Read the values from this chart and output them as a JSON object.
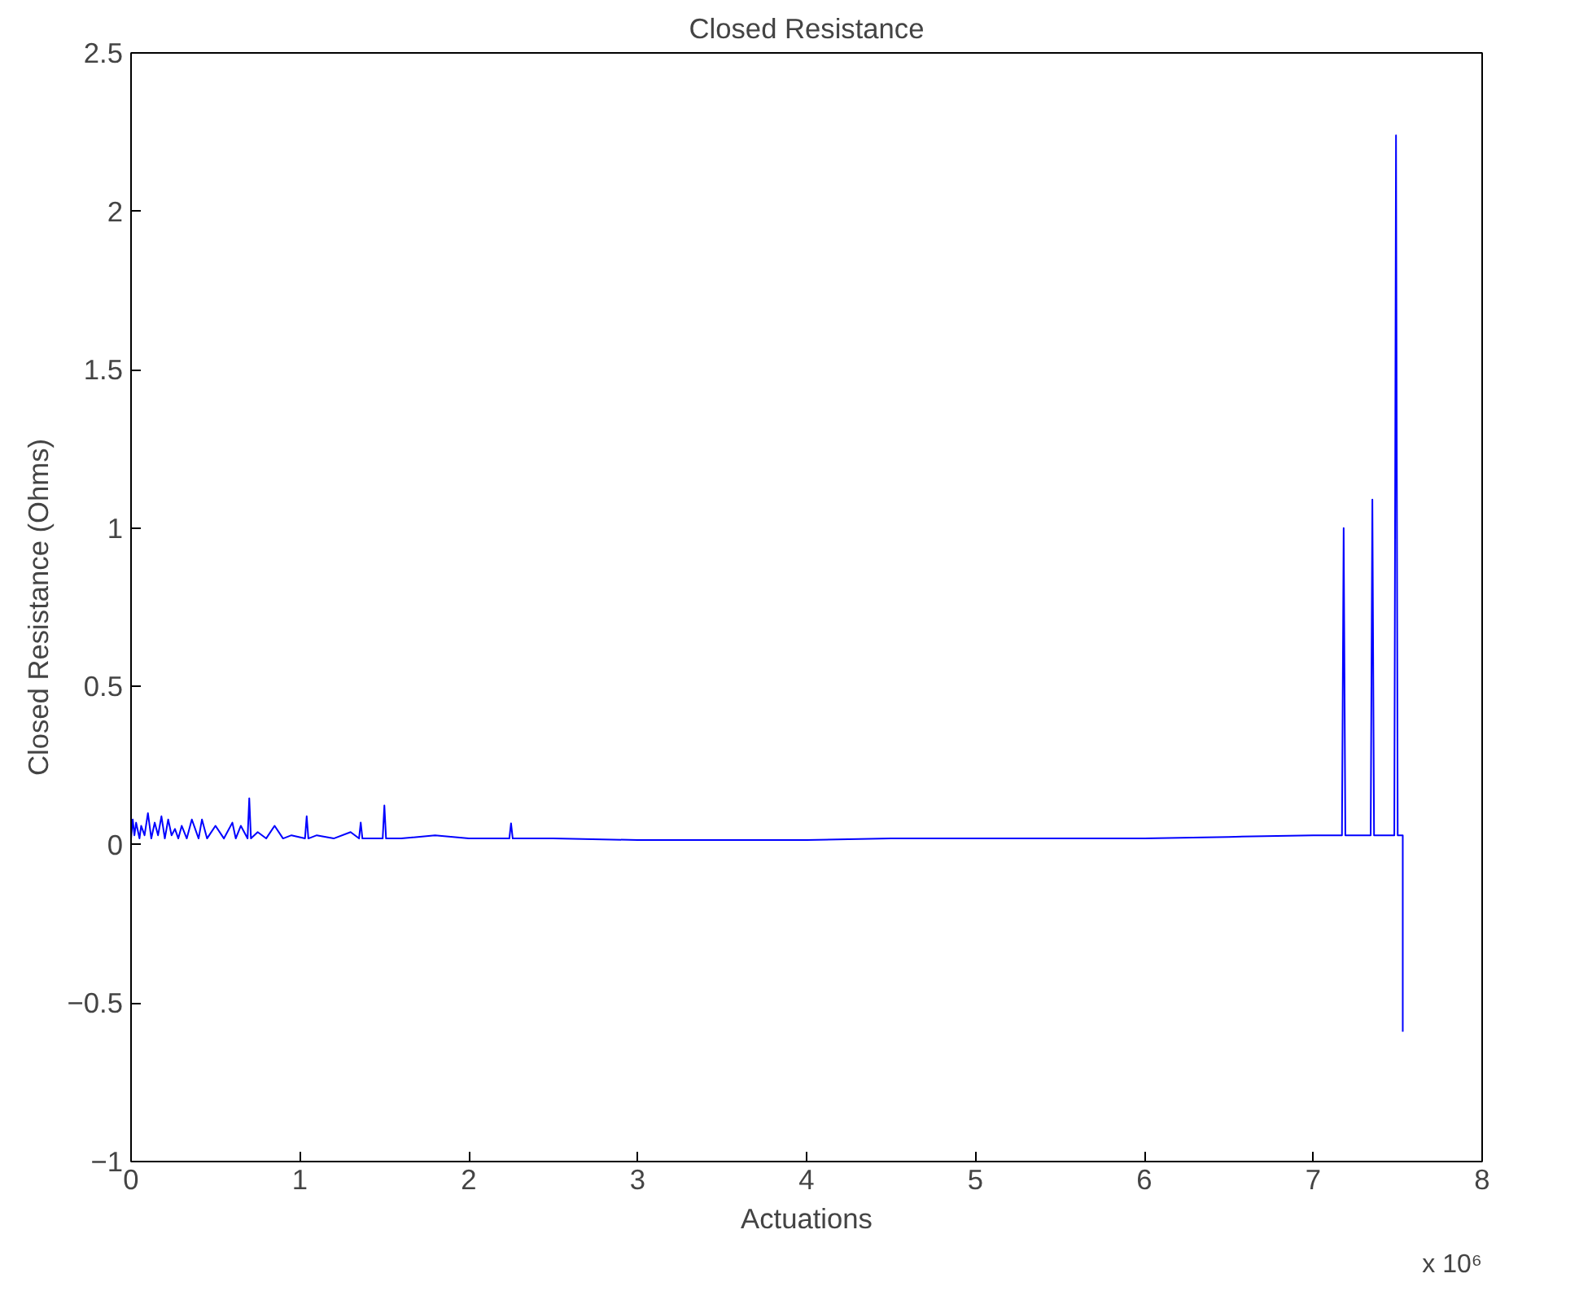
{
  "chart_data": {
    "type": "line",
    "title": "Closed Resistance",
    "xlabel": "Actuations",
    "ylabel": "Closed Resistance (Ohms)",
    "x": [
      0,
      0.01,
      0.02,
      0.03,
      0.05,
      0.06,
      0.08,
      0.1,
      0.12,
      0.14,
      0.16,
      0.18,
      0.2,
      0.22,
      0.24,
      0.26,
      0.28,
      0.3,
      0.33,
      0.36,
      0.4,
      0.42,
      0.45,
      0.5,
      0.55,
      0.6,
      0.62,
      0.65,
      0.69,
      0.7,
      0.71,
      0.75,
      0.8,
      0.85,
      0.9,
      0.95,
      1.03,
      1.04,
      1.05,
      1.1,
      1.2,
      1.3,
      1.35,
      1.36,
      1.37,
      1.49,
      1.5,
      1.51,
      1.6,
      1.8,
      2.0,
      2.24,
      2.25,
      2.26,
      2.5,
      3.0,
      3.5,
      4.0,
      4.5,
      5.0,
      5.5,
      6.0,
      6.5,
      7.0,
      7.17,
      7.18,
      7.19,
      7.34,
      7.35,
      7.36,
      7.48,
      7.49,
      7.5,
      7.53,
      7.53
    ],
    "series": [
      {
        "color": "#0000ff",
        "values": [
          0.02,
          0.08,
          0.03,
          0.07,
          0.02,
          0.06,
          0.03,
          0.1,
          0.02,
          0.07,
          0.03,
          0.09,
          0.02,
          0.08,
          0.03,
          0.05,
          0.02,
          0.06,
          0.02,
          0.08,
          0.02,
          0.08,
          0.02,
          0.06,
          0.02,
          0.07,
          0.02,
          0.06,
          0.02,
          0.147,
          0.02,
          0.04,
          0.02,
          0.06,
          0.02,
          0.03,
          0.02,
          0.09,
          0.02,
          0.03,
          0.02,
          0.04,
          0.02,
          0.07,
          0.02,
          0.02,
          0.124,
          0.02,
          0.02,
          0.03,
          0.02,
          0.02,
          0.068,
          0.02,
          0.02,
          0.015,
          0.015,
          0.015,
          0.02,
          0.02,
          0.02,
          0.02,
          0.025,
          0.03,
          0.03,
          1.0,
          0.03,
          0.03,
          1.09,
          0.03,
          0.03,
          2.24,
          0.03,
          0.03,
          -0.59
        ]
      }
    ],
    "xlim": [
      0,
      8
    ],
    "xticks": [
      0,
      1,
      2,
      3,
      4,
      5,
      6,
      7,
      8
    ],
    "ylim": [
      -1,
      2.5
    ],
    "yticks": [
      -1,
      -0.5,
      0,
      0.5,
      1,
      1.5,
      2,
      2.5
    ],
    "annotations": [
      "x 10⁶"
    ],
    "line_style": "solid"
  }
}
